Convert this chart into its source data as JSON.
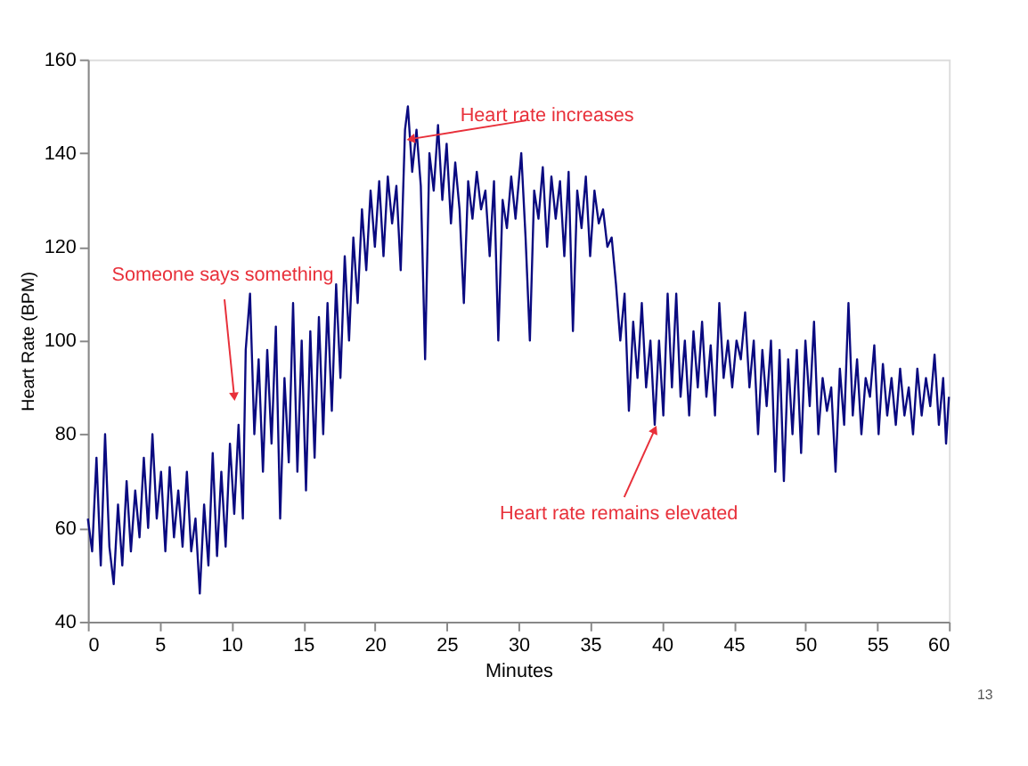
{
  "chart_data": {
    "type": "line",
    "xlabel": "Minutes",
    "ylabel": "Heart Rate (BPM)",
    "xlim": [
      0,
      60
    ],
    "xticks": [
      0,
      5,
      10,
      15,
      20,
      25,
      30,
      35,
      40,
      45,
      50,
      55,
      60
    ],
    "ylim": [
      40,
      160
    ],
    "yticks": [
      40,
      60,
      80,
      100,
      120,
      140,
      160
    ],
    "grid": false,
    "marker": "none",
    "line_style": "solid",
    "x": [
      0,
      0.3,
      0.6,
      0.9,
      1.2,
      1.5,
      1.8,
      2.1,
      2.4,
      2.7,
      3.0,
      3.3,
      3.6,
      3.9,
      4.2,
      4.5,
      4.8,
      5.1,
      5.4,
      5.7,
      6.0,
      6.3,
      6.6,
      6.9,
      7.2,
      7.5,
      7.8,
      8.1,
      8.4,
      8.7,
      9.0,
      9.3,
      9.6,
      9.9,
      10.2,
      10.5,
      10.8,
      11.0,
      11.3,
      11.6,
      11.9,
      12.2,
      12.5,
      12.8,
      13.1,
      13.4,
      13.7,
      14.0,
      14.3,
      14.6,
      14.9,
      15.2,
      15.5,
      15.8,
      16.1,
      16.4,
      16.7,
      17.0,
      17.3,
      17.6,
      17.9,
      18.2,
      18.5,
      18.8,
      19.1,
      19.4,
      19.7,
      20.0,
      20.3,
      20.6,
      20.9,
      21.2,
      21.5,
      21.8,
      22.1,
      22.3,
      22.6,
      22.9,
      23.2,
      23.5,
      23.8,
      24.1,
      24.4,
      24.7,
      25.0,
      25.3,
      25.6,
      25.9,
      26.2,
      26.5,
      26.8,
      27.1,
      27.4,
      27.7,
      28.0,
      28.3,
      28.6,
      28.9,
      29.2,
      29.5,
      29.8,
      30.2,
      30.5,
      30.8,
      31.1,
      31.4,
      31.7,
      32.0,
      32.3,
      32.6,
      32.9,
      33.2,
      33.5,
      33.8,
      34.1,
      34.4,
      34.7,
      35.0,
      35.3,
      35.6,
      35.9,
      36.2,
      36.5,
      36.8,
      37.1,
      37.4,
      37.7,
      38.0,
      38.3,
      38.6,
      38.9,
      39.2,
      39.5,
      39.8,
      40.1,
      40.4,
      40.7,
      41.0,
      41.3,
      41.6,
      41.9,
      42.2,
      42.5,
      42.8,
      43.1,
      43.4,
      43.7,
      44.0,
      44.3,
      44.6,
      44.9,
      45.2,
      45.5,
      45.8,
      46.1,
      46.4,
      46.7,
      47.0,
      47.3,
      47.6,
      47.9,
      48.2,
      48.5,
      48.8,
      49.1,
      49.4,
      49.7,
      50.0,
      50.3,
      50.6,
      50.9,
      51.2,
      51.5,
      51.8,
      52.1,
      52.4,
      52.7,
      53.0,
      53.3,
      53.6,
      53.9,
      54.2,
      54.5,
      54.8,
      55.1,
      55.4,
      55.7,
      56.0,
      56.3,
      56.6,
      56.9,
      57.2,
      57.5,
      57.8,
      58.1,
      58.4,
      58.7,
      59.0,
      59.3,
      59.6,
      59.8,
      60
    ],
    "series": [
      {
        "color": "#0a0a80",
        "values": [
          62,
          55,
          75,
          52,
          80,
          56,
          48,
          65,
          52,
          70,
          55,
          68,
          58,
          75,
          60,
          80,
          62,
          72,
          55,
          73,
          58,
          68,
          56,
          72,
          55,
          62,
          46,
          65,
          52,
          76,
          54,
          72,
          56,
          78,
          63,
          82,
          62,
          98,
          110,
          80,
          96,
          72,
          98,
          78,
          103,
          62,
          92,
          74,
          108,
          72,
          100,
          68,
          102,
          75,
          105,
          80,
          108,
          85,
          112,
          92,
          118,
          100,
          122,
          108,
          128,
          115,
          132,
          120,
          134,
          118,
          135,
          125,
          133,
          115,
          145,
          150,
          136,
          145,
          133,
          96,
          140,
          132,
          146,
          130,
          142,
          125,
          138,
          128,
          108,
          134,
          126,
          136,
          128,
          132,
          118,
          134,
          100,
          130,
          124,
          135,
          126,
          140,
          122,
          100,
          132,
          126,
          137,
          120,
          135,
          126,
          134,
          118,
          136,
          102,
          132,
          124,
          135,
          118,
          132,
          125,
          128,
          120,
          122,
          112,
          100,
          110,
          85,
          104,
          92,
          108,
          90,
          100,
          82,
          100,
          84,
          110,
          90,
          110,
          88,
          100,
          84,
          102,
          90,
          104,
          88,
          99,
          84,
          108,
          92,
          100,
          90,
          100,
          96,
          106,
          90,
          100,
          80,
          98,
          86,
          100,
          72,
          98,
          70,
          96,
          80,
          98,
          76,
          100,
          86,
          104,
          80,
          92,
          85,
          90,
          72,
          94,
          82,
          108,
          84,
          96,
          80,
          92,
          88,
          99,
          80,
          95,
          84,
          92,
          82,
          94,
          84,
          90,
          80,
          94,
          84,
          92,
          86,
          97,
          82,
          92,
          78,
          88
        ]
      }
    ],
    "annotations": [
      {
        "text": "Heart rate increases",
        "x": 22.5,
        "y": 143
      },
      {
        "text": "Someone  says something",
        "x": 10.2,
        "y": 88
      },
      {
        "text": "Heart rate remains elevated",
        "x": 39.5,
        "y": 81
      },
      "13"
    ]
  }
}
